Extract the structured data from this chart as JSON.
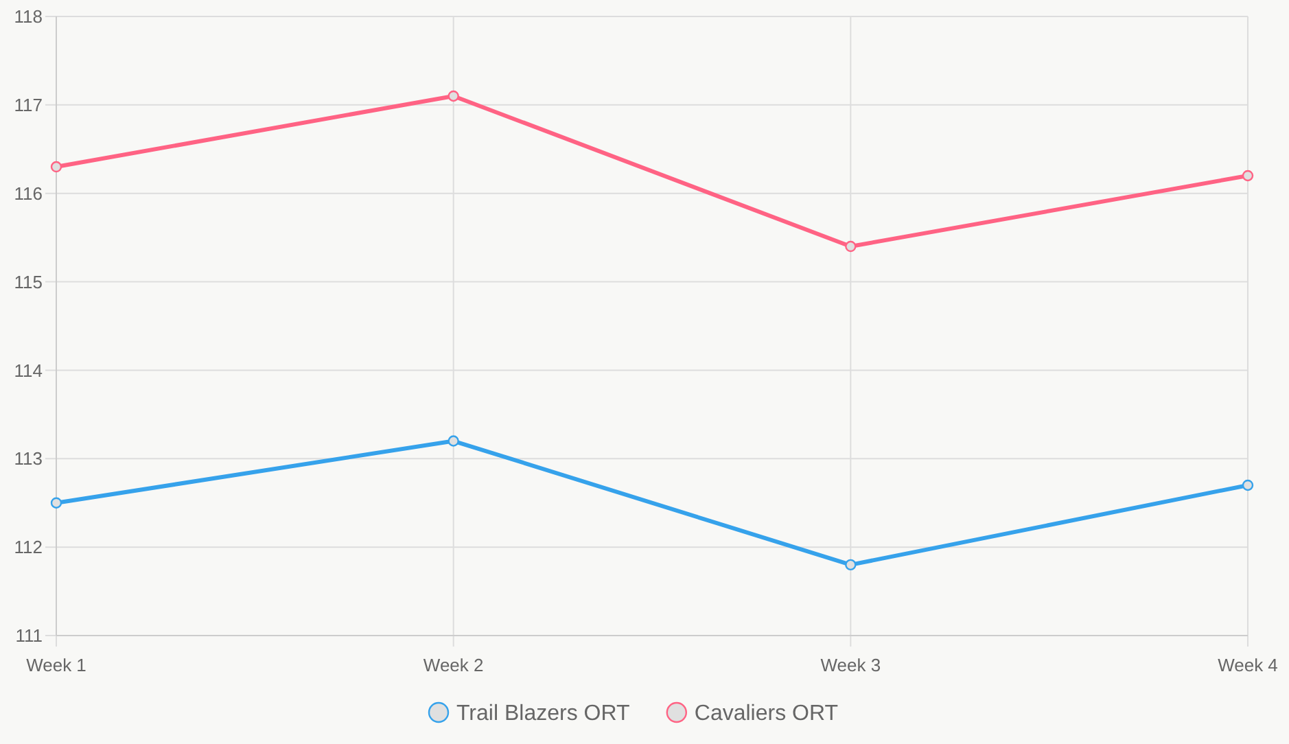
{
  "chart_data": {
    "type": "line",
    "categories": [
      "Week 1",
      "Week 2",
      "Week 3",
      "Week 4"
    ],
    "series": [
      {
        "name": "Trail Blazers ORT",
        "color": "#36a2eb",
        "values": [
          112.5,
          113.2,
          111.8,
          112.7
        ]
      },
      {
        "name": "Cavaliers ORT",
        "color": "#ff6384",
        "values": [
          116.3,
          117.1,
          115.4,
          116.2
        ]
      }
    ],
    "ylim": [
      111,
      118
    ],
    "yticks": [
      111,
      112,
      113,
      114,
      115,
      116,
      117,
      118
    ],
    "grid": true,
    "legend": "bottom",
    "marker": "circle",
    "line_style": "solid"
  }
}
